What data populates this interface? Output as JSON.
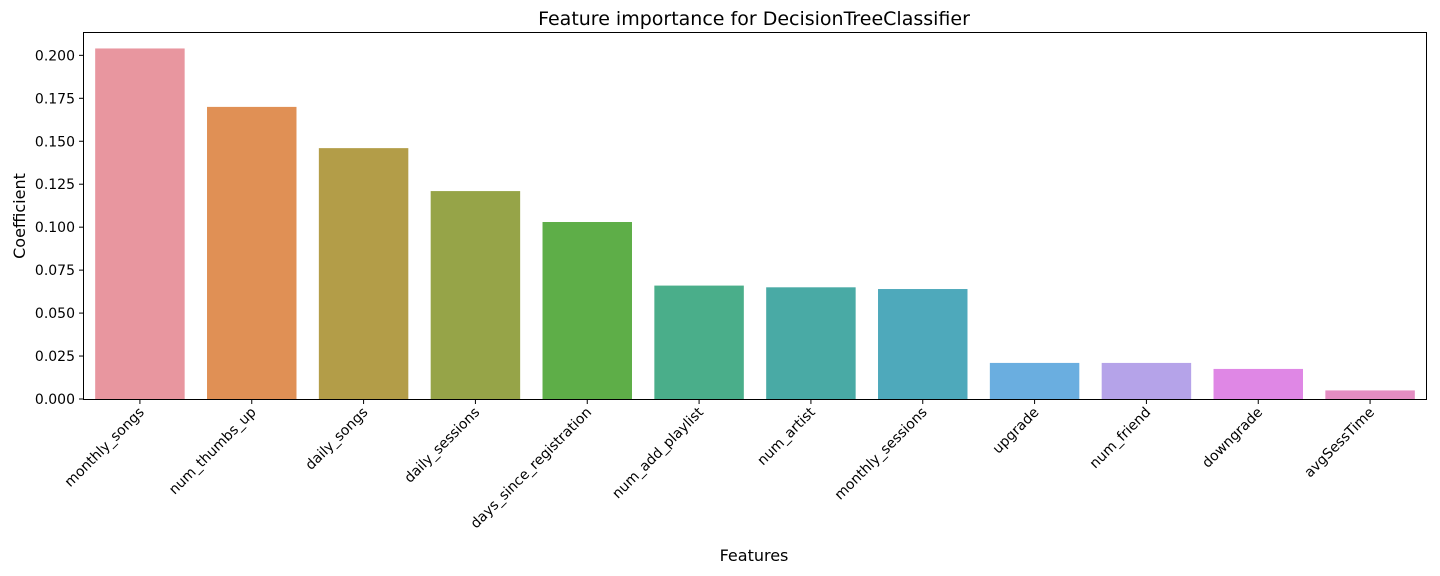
{
  "chart_data": {
    "type": "bar",
    "title": "Feature importance for DecisionTreeClassifier",
    "xlabel": "Features",
    "ylabel": "Coefficient",
    "ylim": [
      0,
      0.213
    ],
    "yticks": [
      "0.000",
      "0.025",
      "0.050",
      "0.075",
      "0.100",
      "0.125",
      "0.150",
      "0.175",
      "0.200"
    ],
    "categories": [
      "monthly_songs",
      "num_thumbs_up",
      "daily_songs",
      "daily_sessions",
      "days_since_registration",
      "num_add_playlist",
      "num_artist",
      "monthly_sessions",
      "upgrade",
      "num_friend",
      "downgrade",
      "avgSessTime"
    ],
    "values": [
      0.204,
      0.17,
      0.146,
      0.121,
      0.103,
      0.066,
      0.065,
      0.064,
      0.021,
      0.021,
      0.0175,
      0.005
    ],
    "colors": [
      "#e8969f",
      "#e09055",
      "#b39d48",
      "#96a448",
      "#5eae48",
      "#4aae8a",
      "#49aaa5",
      "#4ea9bb",
      "#6aaee0",
      "#b5a3e9",
      "#df87e5",
      "#e48dc2"
    ],
    "grid": false,
    "legend": "none"
  }
}
